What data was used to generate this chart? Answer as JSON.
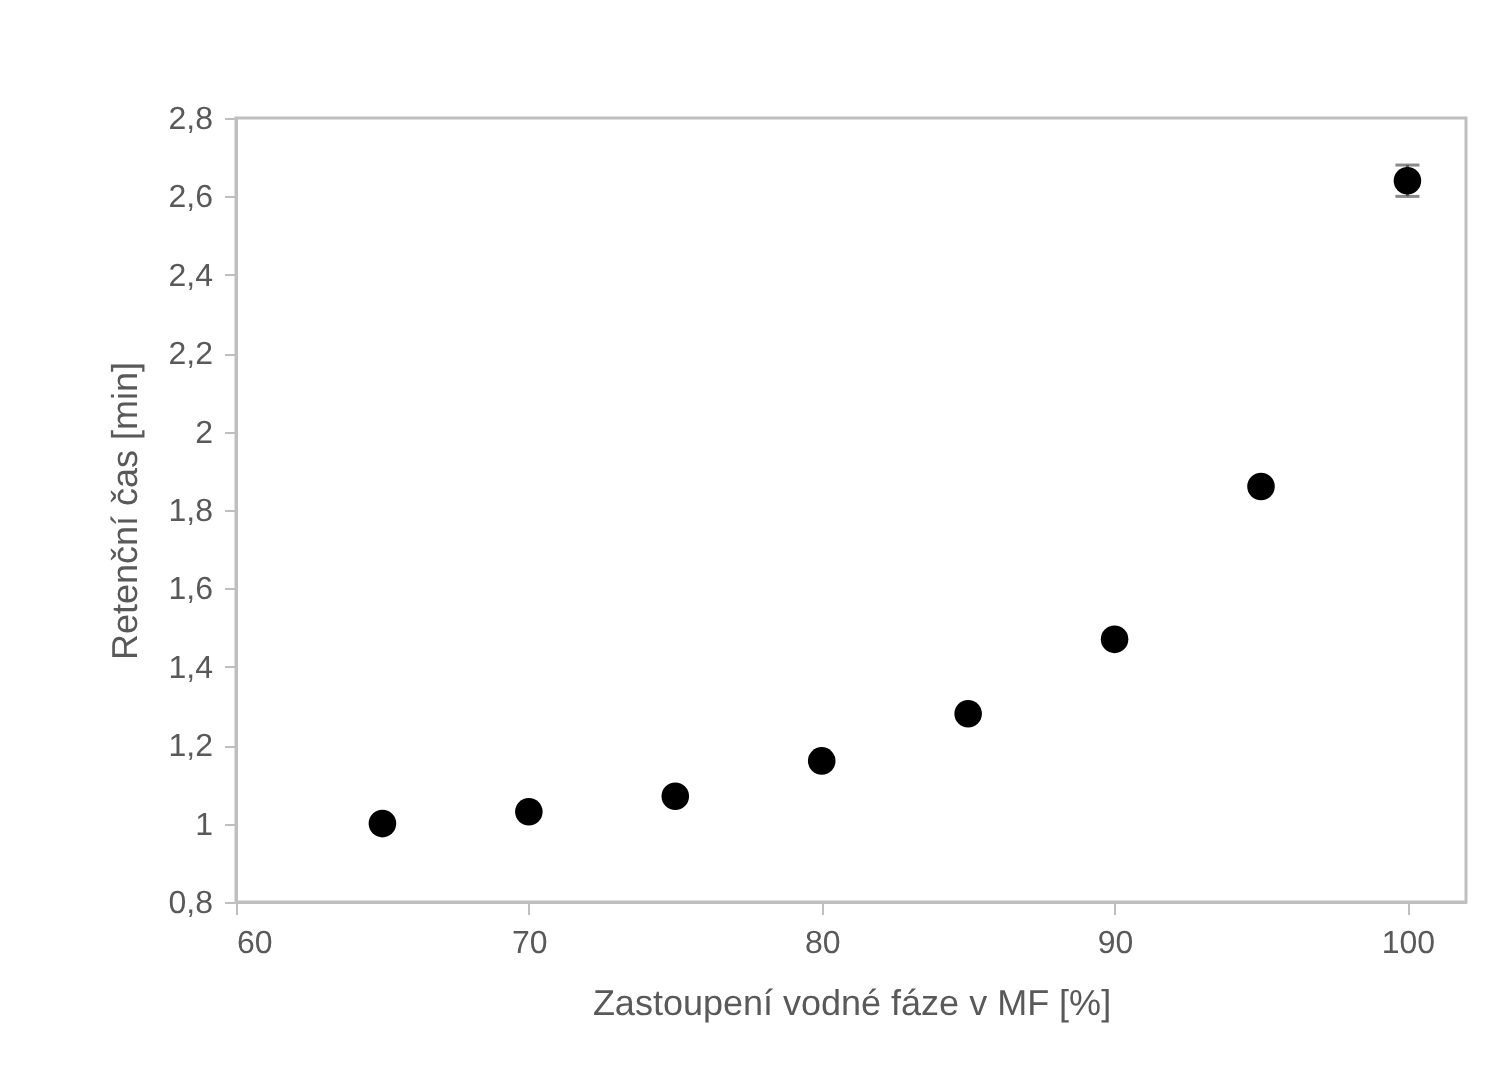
{
  "chart_data": {
    "type": "scatter",
    "xlabel": "Zastoupení vodné fáze v MF [%]",
    "ylabel": "Retenční čas [min]",
    "x": [
      65,
      70,
      75,
      80,
      85,
      90,
      95,
      100
    ],
    "series": [
      {
        "color": "#000000",
        "values": [
          1.0,
          1.03,
          1.07,
          1.16,
          1.28,
          1.47,
          1.86,
          2.64
        ],
        "errors": [
          null,
          null,
          null,
          null,
          null,
          null,
          null,
          0.04
        ]
      }
    ],
    "xlim": [
      60,
      102
    ],
    "xticks": [
      60,
      70,
      80,
      90,
      100
    ],
    "ylim": [
      0.8,
      2.8
    ],
    "yticks": [
      {
        "value": 0.8,
        "label": "0,8"
      },
      1,
      {
        "value": 1.2,
        "label": "1,2"
      },
      {
        "value": 1.4,
        "label": "1,4"
      },
      {
        "value": 1.6,
        "label": "1,6"
      },
      {
        "value": 1.8,
        "label": "1,8"
      },
      2,
      {
        "value": 2.2,
        "label": "2,2"
      },
      {
        "value": 2.4,
        "label": "2,4"
      },
      {
        "value": 2.6,
        "label": "2,6"
      },
      {
        "value": 2.8,
        "label": "2,8"
      }
    ],
    "grid": false,
    "marker": "circle"
  }
}
